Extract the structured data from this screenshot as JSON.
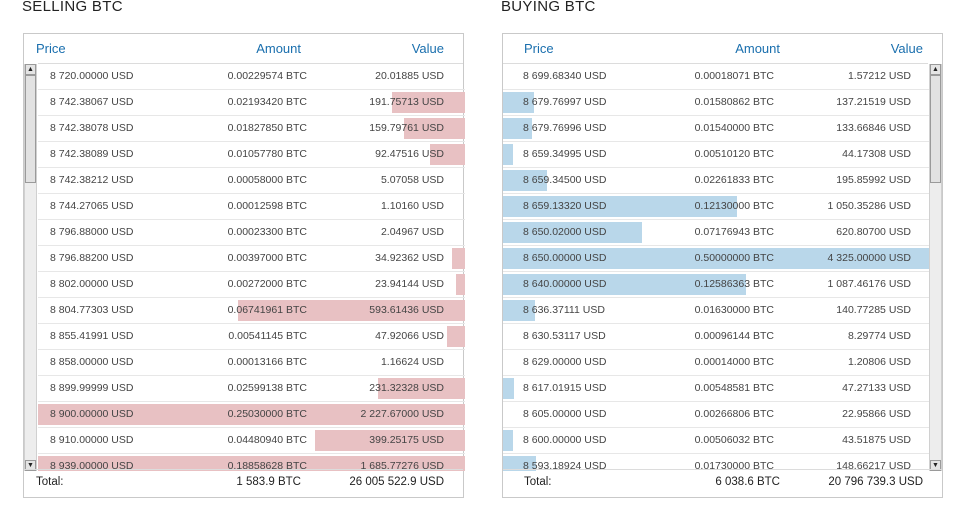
{
  "sell": {
    "title": "SELLING BTC",
    "headers": {
      "price": "Price",
      "amount": "Amount",
      "value": "Value"
    },
    "depth_color": "#e8c1c3",
    "rows": [
      {
        "price": "8 720.00000 USD",
        "amount": "0.00229574 BTC",
        "value": "20.01885 USD",
        "depth": 0.0
      },
      {
        "price": "8 742.38067 USD",
        "amount": "0.02193420 BTC",
        "value": "191.75713 USD",
        "depth": 0.172
      },
      {
        "price": "8 742.38078 USD",
        "amount": "0.01827850 BTC",
        "value": "159.79761 USD",
        "depth": 0.143
      },
      {
        "price": "8 742.38089 USD",
        "amount": "0.01057780 BTC",
        "value": "92.47516 USD",
        "depth": 0.083
      },
      {
        "price": "8 742.38212 USD",
        "amount": "0.00058000 BTC",
        "value": "5.07058 USD",
        "depth": 0.0
      },
      {
        "price": "8 744.27065 USD",
        "amount": "0.00012598 BTC",
        "value": "1.10160 USD",
        "depth": 0.0
      },
      {
        "price": "8 796.88000 USD",
        "amount": "0.00023300 BTC",
        "value": "2.04967 USD",
        "depth": 0.0
      },
      {
        "price": "8 796.88200 USD",
        "amount": "0.00397000 BTC",
        "value": "34.92362 USD",
        "depth": 0.031
      },
      {
        "price": "8 802.00000 USD",
        "amount": "0.00272000 BTC",
        "value": "23.94144 USD",
        "depth": 0.021
      },
      {
        "price": "8 804.77303 USD",
        "amount": "0.06741961 BTC",
        "value": "593.61436 USD",
        "depth": 0.531
      },
      {
        "price": "8 855.41991 USD",
        "amount": "0.00541145 BTC",
        "value": "47.92066 USD",
        "depth": 0.043
      },
      {
        "price": "8 858.00000 USD",
        "amount": "0.00013166 BTC",
        "value": "1.16624 USD",
        "depth": 0.0
      },
      {
        "price": "8 899.99999 USD",
        "amount": "0.02599138 BTC",
        "value": "231.32328 USD",
        "depth": 0.203
      },
      {
        "price": "8 900.00000 USD",
        "amount": "0.25030000 BTC",
        "value": "2 227.67000 USD",
        "depth": 1.0
      },
      {
        "price": "8 910.00000 USD",
        "amount": "0.04480940 BTC",
        "value": "399.25175 USD",
        "depth": 0.352
      },
      {
        "price": "8 939.00000 USD",
        "amount": "0.18858628 BTC",
        "value": "1 685.77276 USD",
        "depth": 1.0
      }
    ],
    "total_label": "Total:",
    "total_amount": "1 583.9 BTC",
    "total_value": "26 005 522.9 USD"
  },
  "buy": {
    "title": "BUYING BTC",
    "headers": {
      "price": "Price",
      "amount": "Amount",
      "value": "Value"
    },
    "depth_color": "#b9d7ea",
    "rows": [
      {
        "price": "8 699.68340 USD",
        "amount": "0.00018071 BTC",
        "value": "1.57212 USD",
        "depth": 0.0
      },
      {
        "price": "8 679.76997 USD",
        "amount": "0.01580862 BTC",
        "value": "137.21519 USD",
        "depth": 0.072
      },
      {
        "price": "8 679.76996 USD",
        "amount": "0.01540000 BTC",
        "value": "133.66846 USD",
        "depth": 0.069
      },
      {
        "price": "8 659.34995 USD",
        "amount": "0.00510120 BTC",
        "value": "44.17308 USD",
        "depth": 0.024
      },
      {
        "price": "8 659.34500 USD",
        "amount": "0.02261833 BTC",
        "value": "195.85992 USD",
        "depth": 0.102
      },
      {
        "price": "8 659.13320 USD",
        "amount": "0.12130000 BTC",
        "value": "1 050.35286 USD",
        "depth": 0.549
      },
      {
        "price": "8 650.02000 USD",
        "amount": "0.07176943 BTC",
        "value": "620.80700 USD",
        "depth": 0.325
      },
      {
        "price": "8 650.00000 USD",
        "amount": "0.50000000 BTC",
        "value": "4 325.00000 USD",
        "depth": 1.0
      },
      {
        "price": "8 640.00000 USD",
        "amount": "0.12586363 BTC",
        "value": "1 087.46176 USD",
        "depth": 0.57
      },
      {
        "price": "8 636.37111 USD",
        "amount": "0.01630000 BTC",
        "value": "140.77285 USD",
        "depth": 0.074
      },
      {
        "price": "8 630.53117 USD",
        "amount": "0.00096144 BTC",
        "value": "8.29774 USD",
        "depth": 0.0
      },
      {
        "price": "8 629.00000 USD",
        "amount": "0.00014000 BTC",
        "value": "1.20806 USD",
        "depth": 0.0
      },
      {
        "price": "8 617.01915 USD",
        "amount": "0.00548581 BTC",
        "value": "47.27133 USD",
        "depth": 0.025
      },
      {
        "price": "8 605.00000 USD",
        "amount": "0.00266806 BTC",
        "value": "22.95866 USD",
        "depth": 0.0
      },
      {
        "price": "8 600.00000 USD",
        "amount": "0.00506032 BTC",
        "value": "43.51875 USD",
        "depth": 0.023
      },
      {
        "price": "8 593.18924 USD",
        "amount": "0.01730000 BTC",
        "value": "148.66217 USD",
        "depth": 0.078
      }
    ],
    "total_label": "Total:",
    "total_amount": "6 038.6 BTC",
    "total_value": "20 796 739.3 USD"
  },
  "scroll_icons": {
    "up": "▲",
    "down": "▼"
  },
  "scroll_position": {
    "sell": 0.0,
    "buy": 0.0
  }
}
